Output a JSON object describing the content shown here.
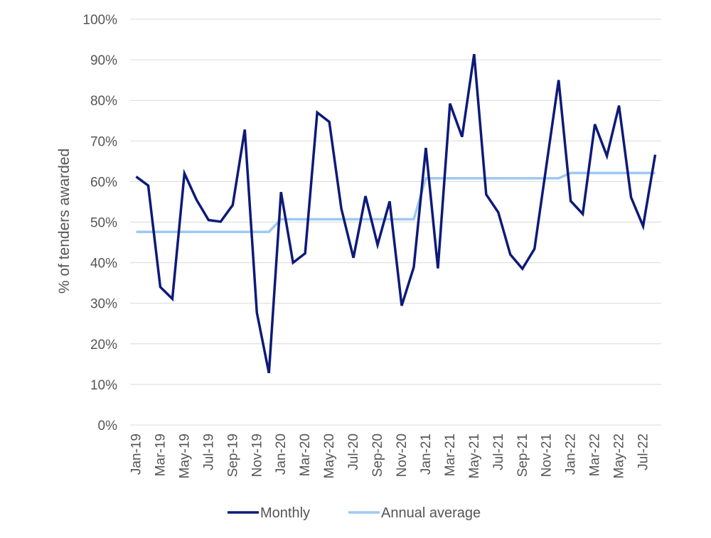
{
  "chart_data": {
    "type": "line",
    "ylabel": "% of tenders awarded",
    "xlabel": "",
    "ylim": [
      0,
      100
    ],
    "y_ticks": [
      "0%",
      "10%",
      "20%",
      "30%",
      "40%",
      "50%",
      "60%",
      "70%",
      "80%",
      "90%",
      "100%"
    ],
    "x": [
      "Jan-19",
      "Feb-19",
      "Mar-19",
      "Apr-19",
      "May-19",
      "Jun-19",
      "Jul-19",
      "Aug-19",
      "Sep-19",
      "Oct-19",
      "Nov-19",
      "Dec-19",
      "Jan-20",
      "Feb-20",
      "Mar-20",
      "Apr-20",
      "May-20",
      "Jun-20",
      "Jul-20",
      "Aug-20",
      "Sep-20",
      "Oct-20",
      "Nov-20",
      "Dec-20",
      "Jan-21",
      "Feb-21",
      "Mar-21",
      "Apr-21",
      "May-21",
      "Jun-21",
      "Jul-21",
      "Aug-21",
      "Sep-21",
      "Oct-21",
      "Nov-21",
      "Dec-21",
      "Jan-22",
      "Feb-22",
      "Mar-22",
      "Apr-22",
      "May-22",
      "Jun-22",
      "Jul-22",
      "Aug-22"
    ],
    "x_tick_labels": [
      "Jan-19",
      "Mar-19",
      "May-19",
      "Jul-19",
      "Sep-19",
      "Nov-19",
      "Jan-20",
      "Mar-20",
      "May-20",
      "Jul-20",
      "Sep-20",
      "Nov-20",
      "Jan-21",
      "Mar-21",
      "May-21",
      "Jul-21",
      "Sep-21",
      "Nov-21",
      "Jan-22",
      "Mar-22",
      "May-22",
      "Jul-22"
    ],
    "grid": true,
    "legend_position": "bottom",
    "series": [
      {
        "name": "Monthly",
        "color": "#0d1a78",
        "values": [
          61.2,
          59,
          34,
          31.1,
          62,
          55.5,
          50.5,
          50.1,
          54.2,
          72.8,
          27.7,
          12.8,
          57.4,
          40,
          42.3,
          77,
          74.7,
          53.3,
          41.2,
          56.4,
          44.4,
          55.1,
          29.4,
          38.9,
          68.3,
          38.6,
          79.2,
          71,
          91.4,
          56.8,
          52.4,
          42,
          38.5,
          43.4,
          64.2,
          85,
          55.2,
          52,
          74.1,
          66.3,
          78.7,
          56.1,
          49,
          66.6
        ]
      },
      {
        "name": "Annual average",
        "color": "#9ec8f2",
        "values": [
          47.6,
          47.6,
          47.6,
          47.6,
          47.6,
          47.6,
          47.6,
          47.6,
          47.6,
          47.6,
          47.6,
          47.6,
          50.7,
          50.7,
          50.7,
          50.7,
          50.7,
          50.7,
          50.7,
          50.7,
          50.7,
          50.7,
          50.7,
          50.7,
          60.8,
          60.8,
          60.8,
          60.8,
          60.8,
          60.8,
          60.8,
          60.8,
          60.8,
          60.8,
          60.8,
          60.8,
          62.1,
          62.1,
          62.1,
          62.1,
          62.1,
          62.1,
          62.1,
          62.1
        ]
      }
    ]
  }
}
